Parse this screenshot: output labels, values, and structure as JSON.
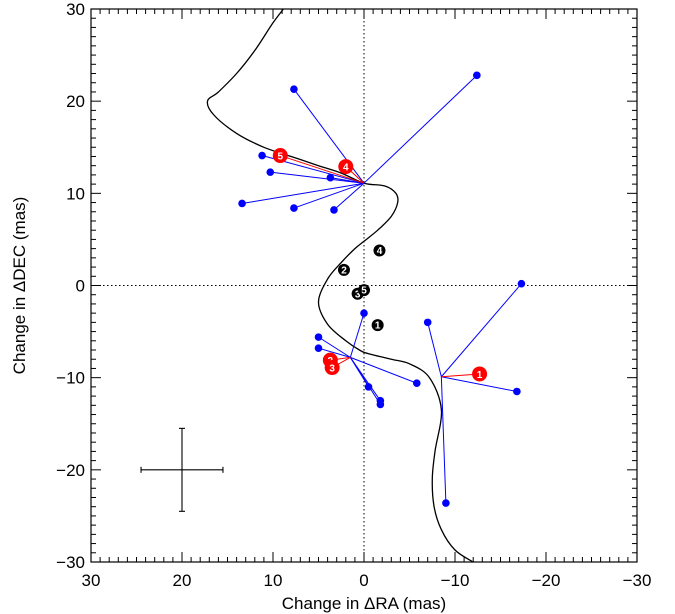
{
  "chart_data": {
    "type": "scatter",
    "title": "",
    "xlabel": "Change in ΔRA (mas)",
    "ylabel": "Change in ΔDEC (mas)",
    "xlim": [
      30,
      -30
    ],
    "ylim": [
      -30,
      30
    ],
    "x_ticks": [
      30,
      20,
      10,
      0,
      -10,
      -20,
      -30
    ],
    "x_tick_labels": [
      "30",
      "20",
      "10",
      "0",
      "−10",
      "−20",
      "−30"
    ],
    "y_ticks": [
      30,
      20,
      10,
      0,
      -10,
      -20,
      -30
    ],
    "y_tick_labels": [
      "30",
      "20",
      "10",
      "0",
      "−10",
      "−20",
      "−30"
    ],
    "grid": false,
    "reference_lines": {
      "x": 0,
      "y": 0,
      "style": "dotted"
    },
    "colors": {
      "model": "#000000",
      "observed": "#0000ff",
      "residual": "#ff0000",
      "fit_marker": "#ff0000",
      "epoch_marker": "#000000"
    },
    "model_curve": {
      "x": [
        -13,
        -12,
        -10,
        -8.5,
        -7.7,
        -7.5,
        -7.8,
        -8.5,
        -7.2,
        -5,
        -3,
        -0.5,
        0.5,
        2,
        4,
        5,
        4,
        2.5,
        1,
        0,
        -1.5,
        -3,
        -3.7,
        -3.5,
        -2.3,
        0,
        2.5,
        5,
        8,
        11,
        14,
        16.5,
        17.2,
        16,
        14,
        12,
        10,
        8.5,
        8.5
      ],
      "y": [
        -30.5,
        -30,
        -28.7,
        -26.5,
        -24,
        -21,
        -18,
        -13.5,
        -10,
        -8.5,
        -8,
        -7.4,
        -7,
        -6,
        -4.2,
        -1.8,
        0.7,
        2.5,
        4,
        4.8,
        6,
        7.5,
        9,
        10,
        10.8,
        11.1,
        12.2,
        13,
        14,
        15,
        16.5,
        18.5,
        20,
        21,
        23,
        25.5,
        28.5,
        30.5,
        31
      ]
    },
    "centers": [
      {
        "x": -8.5,
        "y": -9.9
      },
      {
        "x": 1.5,
        "y": -7.8
      },
      {
        "x": 0,
        "y": 11.1
      }
    ],
    "observed_points": [
      {
        "x": -17.3,
        "y": 0.2,
        "center": 0
      },
      {
        "x": -7,
        "y": -4,
        "center": 0
      },
      {
        "x": -16.8,
        "y": -11.5,
        "center": 0
      },
      {
        "x": -9,
        "y": -23.6,
        "center": 0
      },
      {
        "x": 5,
        "y": -5.6,
        "center": 1
      },
      {
        "x": 5,
        "y": -6.8,
        "center": 1
      },
      {
        "x": 0,
        "y": -3,
        "center": 1
      },
      {
        "x": -0.5,
        "y": -11,
        "center": 1
      },
      {
        "x": -1.8,
        "y": -12.5,
        "center": 1
      },
      {
        "x": -1.8,
        "y": -12.9,
        "center": 1
      },
      {
        "x": -5.8,
        "y": -10.6,
        "center": 1
      },
      {
        "x": 11.2,
        "y": 14.1,
        "center": 2
      },
      {
        "x": 10.3,
        "y": 12.3,
        "center": 2
      },
      {
        "x": 7.7,
        "y": 8.4,
        "center": 2
      },
      {
        "x": 13.4,
        "y": 8.9,
        "center": 2
      },
      {
        "x": 7.7,
        "y": 21.3,
        "center": 2
      },
      {
        "x": 3.3,
        "y": 8.2,
        "center": 2
      },
      {
        "x": 3.7,
        "y": 11.7,
        "center": 2
      },
      {
        "x": -12.4,
        "y": 22.8,
        "center": 2
      }
    ],
    "fit_markers": [
      {
        "label": "1",
        "x": -12.7,
        "y": -9.6,
        "center": 0
      },
      {
        "label": "2",
        "x": 3.7,
        "y": -8.1,
        "center": 1
      },
      {
        "label": "3",
        "x": 3.5,
        "y": -8.9,
        "center": 1
      },
      {
        "label": "4",
        "x": 2,
        "y": 12.9,
        "center": 2
      },
      {
        "label": "5",
        "x": 9.2,
        "y": 14.1,
        "center": 2
      }
    ],
    "epoch_markers": [
      {
        "label": "1",
        "x": -1.5,
        "y": -4.3
      },
      {
        "label": "2",
        "x": 2.2,
        "y": 1.7
      },
      {
        "label": "3",
        "x": 0.7,
        "y": -0.9
      },
      {
        "label": "4",
        "x": -1.7,
        "y": 3.8
      },
      {
        "label": "5",
        "x": 0,
        "y": -0.5
      }
    ],
    "error_bar": {
      "x": 20,
      "y": -20,
      "x_err": 4.5,
      "y_err": 4.5
    }
  }
}
